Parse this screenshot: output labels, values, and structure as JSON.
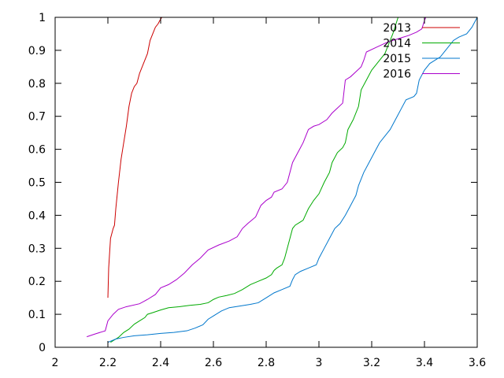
{
  "chart_data": {
    "type": "line",
    "title": "",
    "xlabel": "",
    "ylabel": "",
    "xlim": [
      2,
      3.6
    ],
    "ylim": [
      0,
      1
    ],
    "grid": false,
    "legend_position": "top-right",
    "x_ticks": [
      {
        "value": 2,
        "label": "2"
      },
      {
        "value": 2.2,
        "label": "2.2"
      },
      {
        "value": 2.4,
        "label": "2.4"
      },
      {
        "value": 2.6,
        "label": "2.6"
      },
      {
        "value": 2.8,
        "label": "2.8"
      },
      {
        "value": 3,
        "label": "3"
      },
      {
        "value": 3.2,
        "label": "3.2"
      },
      {
        "value": 3.4,
        "label": "3.4"
      },
      {
        "value": 3.6,
        "label": "3.6"
      }
    ],
    "y_ticks": [
      {
        "value": 0,
        "label": "0"
      },
      {
        "value": 0.1,
        "label": "0.1"
      },
      {
        "value": 0.2,
        "label": "0.2"
      },
      {
        "value": 0.3,
        "label": "0.3"
      },
      {
        "value": 0.4,
        "label": "0.4"
      },
      {
        "value": 0.5,
        "label": "0.5"
      },
      {
        "value": 0.6,
        "label": "0.6"
      },
      {
        "value": 0.7,
        "label": "0.7"
      },
      {
        "value": 0.8,
        "label": "0.8"
      },
      {
        "value": 0.9,
        "label": "0.9"
      },
      {
        "value": 1,
        "label": "1"
      }
    ],
    "series": [
      {
        "name": "2013",
        "color": "#cc0000",
        "points": [
          [
            2.2,
            0.15
          ],
          [
            2.203,
            0.24
          ],
          [
            2.21,
            0.33
          ],
          [
            2.22,
            0.36
          ],
          [
            2.225,
            0.37
          ],
          [
            2.23,
            0.42
          ],
          [
            2.24,
            0.5
          ],
          [
            2.25,
            0.57
          ],
          [
            2.26,
            0.62
          ],
          [
            2.27,
            0.67
          ],
          [
            2.28,
            0.73
          ],
          [
            2.29,
            0.77
          ],
          [
            2.3,
            0.79
          ],
          [
            2.31,
            0.8
          ],
          [
            2.32,
            0.83
          ],
          [
            2.33,
            0.85
          ],
          [
            2.34,
            0.87
          ],
          [
            2.35,
            0.89
          ],
          [
            2.36,
            0.93
          ],
          [
            2.37,
            0.95
          ],
          [
            2.38,
            0.97
          ],
          [
            2.39,
            0.98
          ],
          [
            2.4,
            0.995
          ],
          [
            2.405,
            1.0
          ]
        ]
      },
      {
        "name": "2014",
        "color": "#00aa00",
        "points": [
          [
            2.21,
            0.015
          ],
          [
            2.22,
            0.02
          ],
          [
            2.24,
            0.03
          ],
          [
            2.26,
            0.045
          ],
          [
            2.28,
            0.055
          ],
          [
            2.3,
            0.07
          ],
          [
            2.32,
            0.08
          ],
          [
            2.34,
            0.09
          ],
          [
            2.35,
            0.1
          ],
          [
            2.37,
            0.105
          ],
          [
            2.4,
            0.113
          ],
          [
            2.43,
            0.12
          ],
          [
            2.47,
            0.123
          ],
          [
            2.51,
            0.127
          ],
          [
            2.55,
            0.13
          ],
          [
            2.58,
            0.135
          ],
          [
            2.6,
            0.145
          ],
          [
            2.62,
            0.152
          ],
          [
            2.65,
            0.157
          ],
          [
            2.68,
            0.163
          ],
          [
            2.71,
            0.175
          ],
          [
            2.74,
            0.19
          ],
          [
            2.77,
            0.2
          ],
          [
            2.8,
            0.21
          ],
          [
            2.82,
            0.22
          ],
          [
            2.83,
            0.233
          ],
          [
            2.84,
            0.24
          ],
          [
            2.86,
            0.25
          ],
          [
            2.87,
            0.27
          ],
          [
            2.88,
            0.3
          ],
          [
            2.89,
            0.33
          ],
          [
            2.9,
            0.36
          ],
          [
            2.91,
            0.37
          ],
          [
            2.94,
            0.385
          ],
          [
            2.96,
            0.42
          ],
          [
            2.98,
            0.445
          ],
          [
            3.0,
            0.465
          ],
          [
            3.02,
            0.5
          ],
          [
            3.04,
            0.53
          ],
          [
            3.05,
            0.56
          ],
          [
            3.07,
            0.59
          ],
          [
            3.09,
            0.605
          ],
          [
            3.1,
            0.62
          ],
          [
            3.11,
            0.66
          ],
          [
            3.13,
            0.69
          ],
          [
            3.15,
            0.73
          ],
          [
            3.16,
            0.78
          ],
          [
            3.18,
            0.81
          ],
          [
            3.2,
            0.84
          ],
          [
            3.22,
            0.86
          ],
          [
            3.25,
            0.89
          ],
          [
            3.27,
            0.93
          ],
          [
            3.28,
            0.95
          ],
          [
            3.29,
            0.975
          ],
          [
            3.3,
            1.0
          ]
        ]
      },
      {
        "name": "2015",
        "color": "#0077cc",
        "points": [
          [
            2.2,
            0.015
          ],
          [
            2.23,
            0.025
          ],
          [
            2.26,
            0.03
          ],
          [
            2.3,
            0.035
          ],
          [
            2.35,
            0.038
          ],
          [
            2.4,
            0.042
          ],
          [
            2.45,
            0.045
          ],
          [
            2.5,
            0.05
          ],
          [
            2.53,
            0.058
          ],
          [
            2.56,
            0.068
          ],
          [
            2.58,
            0.085
          ],
          [
            2.6,
            0.095
          ],
          [
            2.63,
            0.11
          ],
          [
            2.66,
            0.12
          ],
          [
            2.7,
            0.125
          ],
          [
            2.74,
            0.13
          ],
          [
            2.77,
            0.135
          ],
          [
            2.8,
            0.15
          ],
          [
            2.83,
            0.165
          ],
          [
            2.86,
            0.175
          ],
          [
            2.89,
            0.185
          ],
          [
            2.9,
            0.205
          ],
          [
            2.91,
            0.22
          ],
          [
            2.93,
            0.23
          ],
          [
            2.96,
            0.24
          ],
          [
            2.99,
            0.25
          ],
          [
            3.0,
            0.27
          ],
          [
            3.02,
            0.3
          ],
          [
            3.04,
            0.33
          ],
          [
            3.06,
            0.36
          ],
          [
            3.08,
            0.375
          ],
          [
            3.1,
            0.4
          ],
          [
            3.12,
            0.43
          ],
          [
            3.14,
            0.46
          ],
          [
            3.15,
            0.49
          ],
          [
            3.17,
            0.53
          ],
          [
            3.19,
            0.56
          ],
          [
            3.21,
            0.59
          ],
          [
            3.23,
            0.62
          ],
          [
            3.25,
            0.64
          ],
          [
            3.27,
            0.66
          ],
          [
            3.29,
            0.69
          ],
          [
            3.31,
            0.72
          ],
          [
            3.33,
            0.75
          ],
          [
            3.36,
            0.76
          ],
          [
            3.37,
            0.77
          ],
          [
            3.38,
            0.81
          ],
          [
            3.4,
            0.84
          ],
          [
            3.42,
            0.86
          ],
          [
            3.44,
            0.87
          ],
          [
            3.46,
            0.88
          ],
          [
            3.48,
            0.9
          ],
          [
            3.51,
            0.93
          ],
          [
            3.53,
            0.94
          ],
          [
            3.56,
            0.95
          ],
          [
            3.58,
            0.97
          ],
          [
            3.6,
            1.0
          ]
        ]
      },
      {
        "name": "2016",
        "color": "#aa00cc",
        "points": [
          [
            2.12,
            0.032
          ],
          [
            2.15,
            0.04
          ],
          [
            2.19,
            0.05
          ],
          [
            2.2,
            0.08
          ],
          [
            2.22,
            0.1
          ],
          [
            2.24,
            0.115
          ],
          [
            2.27,
            0.123
          ],
          [
            2.32,
            0.132
          ],
          [
            2.35,
            0.145
          ],
          [
            2.38,
            0.16
          ],
          [
            2.4,
            0.18
          ],
          [
            2.43,
            0.19
          ],
          [
            2.46,
            0.205
          ],
          [
            2.49,
            0.225
          ],
          [
            2.52,
            0.25
          ],
          [
            2.55,
            0.27
          ],
          [
            2.58,
            0.295
          ],
          [
            2.62,
            0.31
          ],
          [
            2.66,
            0.322
          ],
          [
            2.69,
            0.335
          ],
          [
            2.71,
            0.36
          ],
          [
            2.73,
            0.375
          ],
          [
            2.76,
            0.395
          ],
          [
            2.78,
            0.43
          ],
          [
            2.8,
            0.445
          ],
          [
            2.82,
            0.455
          ],
          [
            2.83,
            0.47
          ],
          [
            2.86,
            0.48
          ],
          [
            2.88,
            0.5
          ],
          [
            2.9,
            0.56
          ],
          [
            2.92,
            0.59
          ],
          [
            2.94,
            0.62
          ],
          [
            2.96,
            0.66
          ],
          [
            2.98,
            0.67
          ],
          [
            3.0,
            0.675
          ],
          [
            3.03,
            0.69
          ],
          [
            3.05,
            0.71
          ],
          [
            3.07,
            0.725
          ],
          [
            3.09,
            0.74
          ],
          [
            3.1,
            0.81
          ],
          [
            3.12,
            0.82
          ],
          [
            3.16,
            0.85
          ],
          [
            3.17,
            0.87
          ],
          [
            3.18,
            0.895
          ],
          [
            3.22,
            0.91
          ],
          [
            3.26,
            0.925
          ],
          [
            3.3,
            0.935
          ],
          [
            3.34,
            0.945
          ],
          [
            3.37,
            0.955
          ],
          [
            3.39,
            0.965
          ],
          [
            3.4,
            0.99
          ],
          [
            3.405,
            1.0
          ]
        ]
      }
    ]
  }
}
